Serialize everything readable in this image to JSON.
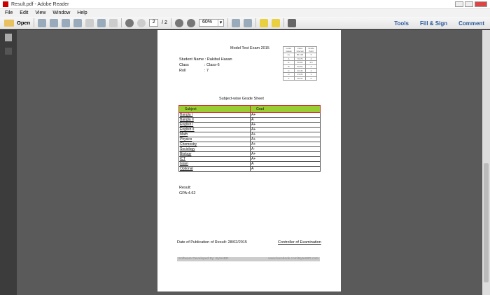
{
  "window": {
    "title": "Result.pdf - Adobe Reader"
  },
  "menu": [
    "File",
    "Edit",
    "View",
    "Window",
    "Help"
  ],
  "toolbar": {
    "open_label": "Open",
    "page_current": "2",
    "page_total": "/ 2",
    "zoom": "60%",
    "links": [
      "Tools",
      "Fill & Sign",
      "Comment"
    ]
  },
  "document": {
    "exam_title": "Model Test Exam 2015",
    "student_name": "Student Name : Rakibul Hasan",
    "class_label": "Class",
    "class_value": ": Class-6",
    "roll_label": "Roll",
    "roll_value": ": 7",
    "grade_scale": {
      "headers": [
        "Letter Grade",
        "Class Interval",
        "Grade Point"
      ],
      "rows": [
        [
          "A+",
          "80-100",
          "5"
        ],
        [
          "A",
          "70-79",
          "4"
        ],
        [
          "A-",
          "60-69",
          "3.5"
        ],
        [
          "B",
          "50-59",
          "3"
        ],
        [
          "C",
          "40-49",
          "2"
        ],
        [
          "D",
          "33-39",
          "1"
        ],
        [
          "F",
          "00-32",
          "0"
        ]
      ]
    },
    "sheet_title": "Subject-wise Grade Sheet",
    "subject_table": {
      "headers": [
        "Subject",
        "Grad"
      ],
      "rows": [
        [
          "Bangla I",
          "A+"
        ],
        [
          "Bangla II",
          "A"
        ],
        [
          "English I",
          "A+"
        ],
        [
          "English II",
          "A+"
        ],
        [
          "Math",
          "A+"
        ],
        [
          "Physics",
          "A+"
        ],
        [
          "Chemestry",
          "A+"
        ],
        [
          "Sociology",
          "A-"
        ],
        [
          "Biology",
          "A+"
        ],
        [
          "ICT",
          "A+"
        ],
        [
          "Islam",
          "A"
        ],
        [
          "Optional",
          "A"
        ]
      ]
    },
    "result_label": "Result:",
    "gpa": "GPA:4.62",
    "publication": "Date of Publication of Result: 28/02/2015",
    "controller": "Controller of Examination",
    "footer_left": "Software Developed By: BytesBD",
    "footer_right": "www.facebook.com/BytesBD.com"
  },
  "colors": {
    "header_green": "#9acd32",
    "header_border": "#cc3333",
    "links": "#2a5a9a"
  }
}
